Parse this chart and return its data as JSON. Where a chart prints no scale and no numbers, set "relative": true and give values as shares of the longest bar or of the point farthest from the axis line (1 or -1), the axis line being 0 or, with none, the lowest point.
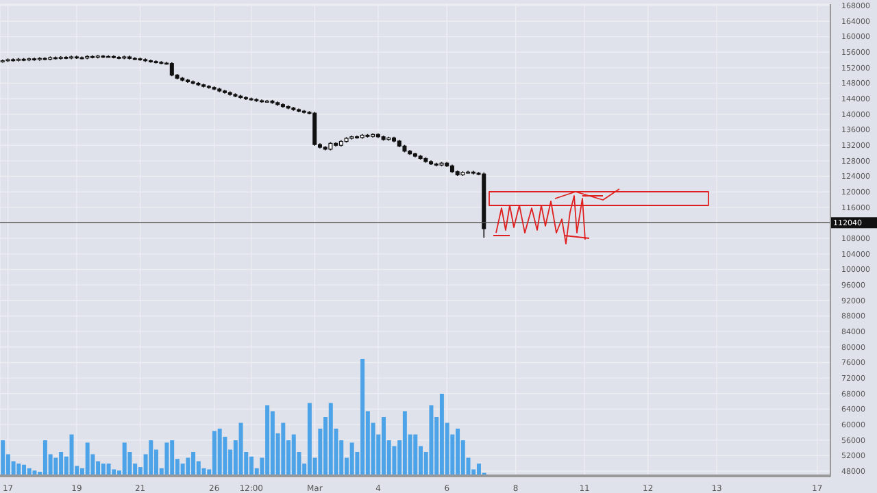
{
  "chart_data": [
    {
      "type": "candlestick",
      "color": "#111111",
      "grid": true,
      "categories": [
        null,
        "17",
        null,
        null,
        null,
        null,
        null,
        null,
        null,
        null,
        null,
        null,
        null,
        null,
        "19",
        null,
        null,
        null,
        null,
        null,
        null,
        null,
        null,
        null,
        null,
        null,
        "21",
        null,
        null,
        null,
        null,
        null,
        null,
        null,
        null,
        null,
        null,
        null,
        null,
        null,
        "26",
        null,
        null,
        null,
        null,
        null,
        null,
        "12:00",
        null,
        null,
        null,
        null,
        null,
        null,
        null,
        null,
        null,
        null,
        null,
        "Mar",
        null,
        null,
        null,
        null,
        null,
        null,
        null,
        null,
        null,
        null,
        null,
        "4",
        null,
        null,
        null,
        null,
        null,
        null,
        null,
        null,
        null,
        null,
        null,
        null,
        "6",
        null,
        null,
        null,
        null,
        null,
        null,
        null,
        null,
        null,
        null,
        null,
        null,
        "8",
        null,
        null,
        null,
        null,
        null,
        null,
        null,
        null,
        null,
        null,
        null,
        null,
        "11",
        null,
        null,
        null,
        null,
        null,
        null,
        null,
        null,
        null,
        null,
        null,
        "12",
        null,
        null,
        null,
        null,
        null,
        null,
        null,
        null,
        null,
        null,
        null,
        null,
        "13",
        null,
        null,
        null,
        null,
        null,
        null,
        null,
        null,
        null,
        null,
        null,
        null,
        null,
        null,
        null,
        null,
        null,
        null,
        "17",
        null,
        null
      ],
      "ohlc": [
        [
          153600,
          154100,
          153300,
          153800
        ],
        [
          153800,
          154400,
          153500,
          154100
        ],
        [
          154100,
          154400,
          153600,
          153900
        ],
        [
          153900,
          154500,
          153600,
          154200
        ],
        [
          154200,
          154500,
          153700,
          154000
        ],
        [
          154000,
          154600,
          153700,
          154300
        ],
        [
          154300,
          154600,
          153800,
          154100
        ],
        [
          154100,
          154700,
          153800,
          154400
        ],
        [
          154400,
          154700,
          153900,
          154200
        ],
        [
          154200,
          154900,
          153900,
          154600
        ],
        [
          154600,
          154900,
          154100,
          154400
        ],
        [
          154400,
          155000,
          154100,
          154700
        ],
        [
          154700,
          155000,
          154200,
          154500
        ],
        [
          154500,
          155100,
          154200,
          154800
        ],
        [
          154800,
          155100,
          154300,
          154600
        ],
        [
          154600,
          154900,
          154200,
          154500
        ],
        [
          154500,
          155200,
          154200,
          154900
        ],
        [
          154900,
          155200,
          154400,
          154700
        ],
        [
          154700,
          155300,
          154400,
          155000
        ],
        [
          155000,
          155300,
          154500,
          154800
        ],
        [
          154800,
          155200,
          154500,
          154900
        ],
        [
          154900,
          155200,
          154400,
          154700
        ],
        [
          154700,
          155000,
          154200,
          154500
        ],
        [
          154500,
          155100,
          154200,
          154800
        ],
        [
          154800,
          155100,
          154100,
          154400
        ],
        [
          154400,
          154700,
          154000,
          154300
        ],
        [
          154300,
          154600,
          153800,
          154100
        ],
        [
          154100,
          154400,
          153500,
          153800
        ],
        [
          153800,
          154100,
          153300,
          153600
        ],
        [
          153600,
          153900,
          153100,
          153400
        ],
        [
          153400,
          153700,
          152900,
          153200
        ],
        [
          153200,
          153500,
          152800,
          153100
        ],
        [
          153100,
          153400,
          149800,
          150100
        ],
        [
          150100,
          150400,
          149000,
          149300
        ],
        [
          149300,
          149600,
          148500,
          148800
        ],
        [
          148800,
          149100,
          148100,
          148400
        ],
        [
          148400,
          148700,
          147700,
          148000
        ],
        [
          148000,
          148300,
          147300,
          147600
        ],
        [
          147600,
          147900,
          146900,
          147200
        ],
        [
          147200,
          147500,
          146600,
          146900
        ],
        [
          146900,
          147200,
          146200,
          146500
        ],
        [
          146500,
          146800,
          145700,
          146000
        ],
        [
          146000,
          146300,
          145300,
          145600
        ],
        [
          145600,
          145900,
          144800,
          145100
        ],
        [
          145100,
          145400,
          144400,
          144700
        ],
        [
          144700,
          145000,
          144000,
          144300
        ],
        [
          144300,
          144600,
          143700,
          144000
        ],
        [
          144000,
          144300,
          143500,
          143800
        ],
        [
          143800,
          144100,
          143200,
          143500
        ],
        [
          143500,
          143800,
          143000,
          143300
        ],
        [
          143300,
          143700,
          143000,
          143400
        ],
        [
          143400,
          143700,
          142700,
          143000
        ],
        [
          143000,
          143300,
          142200,
          142500
        ],
        [
          142500,
          142800,
          141700,
          142000
        ],
        [
          142000,
          142300,
          141300,
          141600
        ],
        [
          141600,
          141900,
          140900,
          141200
        ],
        [
          141200,
          141500,
          140500,
          140800
        ],
        [
          140800,
          141100,
          140200,
          140500
        ],
        [
          140500,
          140800,
          140000,
          140300
        ],
        [
          140300,
          140600,
          131900,
          132200
        ],
        [
          132200,
          132500,
          131200,
          131500
        ],
        [
          131500,
          131800,
          130700,
          131000
        ],
        [
          131000,
          132800,
          130700,
          132500
        ],
        [
          132500,
          132800,
          131700,
          132000
        ],
        [
          132000,
          133300,
          131700,
          133000
        ],
        [
          133000,
          134100,
          132700,
          133800
        ],
        [
          133800,
          134500,
          133500,
          134200
        ],
        [
          134200,
          134500,
          133700,
          134000
        ],
        [
          134000,
          134900,
          133700,
          134600
        ],
        [
          134600,
          134900,
          134000,
          134300
        ],
        [
          134300,
          135100,
          134000,
          134800
        ],
        [
          134800,
          135100,
          133900,
          134200
        ],
        [
          134200,
          134500,
          133200,
          133500
        ],
        [
          133500,
          134200,
          133200,
          133900
        ],
        [
          133900,
          134200,
          132800,
          133100
        ],
        [
          133100,
          133400,
          131500,
          131800
        ],
        [
          131800,
          132100,
          130200,
          130500
        ],
        [
          130500,
          130800,
          129500,
          129800
        ],
        [
          129800,
          130100,
          128900,
          129200
        ],
        [
          129200,
          129500,
          128300,
          128600
        ],
        [
          128600,
          128900,
          127500,
          127800
        ],
        [
          127800,
          128100,
          126900,
          127200
        ],
        [
          127200,
          127500,
          126600,
          126900
        ],
        [
          126900,
          127700,
          126600,
          127400
        ],
        [
          127400,
          127700,
          126400,
          126700
        ],
        [
          126700,
          127000,
          124900,
          125200
        ],
        [
          125200,
          125500,
          124100,
          124400
        ],
        [
          124400,
          125300,
          124100,
          125000
        ],
        [
          125000,
          125400,
          124700,
          125100
        ],
        [
          125100,
          125400,
          124500,
          124800
        ],
        [
          124800,
          125100,
          124300,
          124600
        ],
        [
          124600,
          125000,
          108200,
          110500
        ],
        null,
        null,
        null,
        null,
        null,
        null,
        null,
        null,
        null,
        null,
        null,
        null,
        null,
        null,
        null,
        null,
        null,
        null,
        null,
        null,
        null,
        null,
        null,
        null,
        null,
        null,
        null,
        null,
        null,
        null,
        null,
        null,
        null,
        null,
        null,
        null,
        null,
        null,
        null,
        null,
        null,
        null,
        null,
        null,
        null,
        null,
        null,
        null,
        null,
        null,
        null,
        null,
        null,
        null,
        null,
        null,
        null,
        null,
        null,
        null,
        null,
        null,
        null,
        null,
        null
      ],
      "ylim": [
        46600,
        168400
      ],
      "yticks": [
        48000,
        52000,
        56000,
        60000,
        64000,
        68000,
        72000,
        76000,
        80000,
        84000,
        88000,
        92000,
        96000,
        100000,
        104000,
        108000,
        116000,
        120000,
        124000,
        128000,
        132000,
        136000,
        140000,
        144000,
        148000,
        152000,
        156000,
        160000,
        164000,
        168000
      ],
      "ref_lines": [
        {
          "axis": "y",
          "value": 112040,
          "label": "112040",
          "color": "#555555"
        }
      ]
    },
    {
      "type": "bar",
      "relative": true,
      "color": "#4da3e8",
      "tick_labels": false,
      "categories": [
        null,
        null,
        null,
        null,
        null,
        null,
        null,
        null,
        null,
        null,
        null,
        null,
        null,
        null,
        null,
        null,
        null,
        null,
        null,
        null,
        null,
        null,
        null,
        null,
        null,
        null,
        null,
        null,
        null,
        null,
        null,
        null,
        null,
        null,
        null,
        null,
        null,
        null,
        null,
        null,
        null,
        null,
        null,
        null,
        null,
        null,
        null,
        null,
        null,
        null,
        null,
        null,
        null,
        null,
        null,
        null,
        null,
        null,
        null,
        null,
        null,
        null,
        null,
        null,
        null,
        null,
        null,
        null,
        null,
        null,
        null,
        null,
        null,
        null,
        null,
        null,
        null,
        null,
        null,
        null,
        null,
        null,
        null,
        null,
        null,
        null,
        null,
        null,
        null,
        null,
        null,
        null,
        null,
        null,
        null,
        null,
        null,
        null,
        null,
        null,
        null,
        null,
        null,
        null,
        null,
        null,
        null,
        null,
        null,
        null,
        null,
        null,
        null,
        null,
        null,
        null,
        null,
        null,
        null,
        null,
        null,
        null,
        null,
        null,
        null,
        null,
        null,
        null,
        null,
        null,
        null,
        null,
        null,
        null,
        null,
        null,
        null,
        null,
        null,
        null,
        null,
        null,
        null,
        null,
        null,
        null,
        null,
        null,
        null,
        null,
        null,
        null,
        null,
        null,
        null,
        null,
        null
      ],
      "values": [
        0.3,
        0.18,
        0.12,
        0.1,
        0.09,
        0.06,
        0.04,
        0.03,
        0.3,
        0.18,
        0.15,
        0.2,
        0.16,
        0.35,
        0.08,
        0.06,
        0.28,
        0.18,
        0.12,
        0.1,
        0.1,
        0.05,
        0.04,
        0.28,
        0.2,
        0.1,
        0.07,
        0.18,
        0.3,
        0.22,
        0.06,
        0.28,
        0.3,
        0.14,
        0.1,
        0.15,
        0.2,
        0.12,
        0.06,
        0.05,
        0.38,
        0.4,
        0.33,
        0.22,
        0.3,
        0.45,
        0.2,
        0.16,
        0.06,
        0.15,
        0.6,
        0.55,
        0.36,
        0.45,
        0.3,
        0.35,
        0.2,
        0.1,
        0.62,
        0.15,
        0.4,
        0.5,
        0.62,
        0.4,
        0.3,
        0.15,
        0.28,
        0.2,
        1.0,
        0.55,
        0.45,
        0.35,
        0.5,
        0.3,
        0.25,
        0.3,
        0.55,
        0.35,
        0.35,
        0.25,
        0.2,
        0.6,
        0.5,
        0.7,
        0.45,
        0.35,
        0.4,
        0.3,
        0.15,
        0.05,
        0.1,
        0.02,
        null,
        null,
        null,
        null,
        null,
        null,
        null,
        null,
        null,
        null,
        null,
        null,
        null,
        null,
        null,
        null,
        null,
        null,
        null,
        null,
        null,
        null,
        null,
        null,
        null,
        null,
        null,
        null,
        null,
        null,
        null,
        null,
        null,
        null,
        null,
        null,
        null,
        null,
        null,
        null,
        null,
        null,
        null,
        null,
        null,
        null,
        null,
        null,
        null,
        null,
        null,
        null,
        null,
        null,
        null,
        null,
        null,
        null,
        null,
        null,
        null,
        null,
        null,
        null,
        null
      ]
    }
  ]
}
